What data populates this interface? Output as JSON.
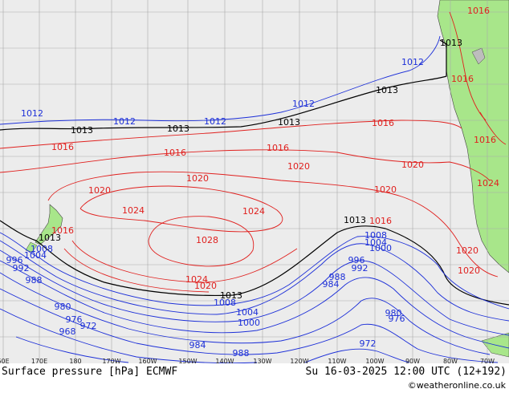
{
  "footer": {
    "left": "Surface pressure [hPa] ECMWF",
    "right": "Su 16-03-2025 12:00 UTC (12+192)",
    "credit": "©weatheronline.co.uk"
  },
  "longitude_ticks": [
    "60E",
    "170E",
    "180",
    "170W",
    "160W",
    "150W",
    "140W",
    "130W",
    "120W",
    "110W",
    "100W",
    "90W",
    "80W",
    "70W"
  ],
  "colors": {
    "ocean": "#ececec",
    "land": "#a8e68a",
    "grid": "#a9a9a9",
    "high_isobar": "#e0201e",
    "low_isobar": "#1c2fd8",
    "standard_isobar": "#000000"
  },
  "isobar_labels": [
    {
      "text": "1016",
      "color": "red",
      "name": "label-1016-chile-top"
    },
    {
      "text": "1013",
      "color": "black",
      "name": "label-1013-top"
    },
    {
      "text": "1012",
      "color": "blue",
      "name": "label-1012-east"
    },
    {
      "text": "1016",
      "color": "red",
      "name": "label-1016-chile"
    },
    {
      "text": "1012",
      "color": "blue",
      "name": "label-1012-west"
    },
    {
      "text": "1012",
      "color": "blue",
      "name": "label-1012-b"
    },
    {
      "text": "1012",
      "color": "blue",
      "name": "label-1012-c"
    },
    {
      "text": "1012",
      "color": "blue",
      "name": "label-1012-d"
    },
    {
      "text": "1013",
      "color": "black",
      "name": "label-1013-a"
    },
    {
      "text": "1013",
      "color": "black",
      "name": "label-1013-b"
    },
    {
      "text": "1013",
      "color": "black",
      "name": "label-1013-c"
    },
    {
      "text": "1013",
      "color": "black",
      "name": "label-1013-d"
    },
    {
      "text": "1016",
      "color": "red",
      "name": "label-1016-a"
    },
    {
      "text": "1016",
      "color": "red",
      "name": "label-1016-b"
    },
    {
      "text": "1016",
      "color": "red",
      "name": "label-1016-c"
    },
    {
      "text": "1016",
      "color": "red",
      "name": "label-1016-d"
    },
    {
      "text": "1016",
      "color": "red",
      "name": "label-1016-e"
    },
    {
      "text": "1024",
      "color": "red",
      "name": "label-1024-andes"
    },
    {
      "text": "1020",
      "color": "red",
      "name": "label-1020-a"
    },
    {
      "text": "1020",
      "color": "red",
      "name": "label-1020-b"
    },
    {
      "text": "1020",
      "color": "red",
      "name": "label-1020-c"
    },
    {
      "text": "1020",
      "color": "red",
      "name": "label-1020-d"
    },
    {
      "text": "1020",
      "color": "red",
      "name": "label-1020-e"
    },
    {
      "text": "1024",
      "color": "red",
      "name": "label-1024-a"
    },
    {
      "text": "1024",
      "color": "red",
      "name": "label-1024-b"
    },
    {
      "text": "1024",
      "color": "red",
      "name": "label-1024-c"
    },
    {
      "text": "1028",
      "color": "red",
      "name": "label-1028"
    },
    {
      "text": "1020",
      "color": "red",
      "name": "label-1020-f"
    },
    {
      "text": "1020",
      "color": "red",
      "name": "label-1020-g"
    },
    {
      "text": "1020",
      "color": "red",
      "name": "label-1020-h"
    },
    {
      "text": "1016",
      "color": "red",
      "name": "label-1016-f"
    },
    {
      "text": "1016",
      "color": "red",
      "name": "label-1016-nz"
    },
    {
      "text": "1013",
      "color": "black",
      "name": "label-1013-e"
    },
    {
      "text": "1013",
      "color": "black",
      "name": "label-1013-nz"
    },
    {
      "text": "1013",
      "color": "black",
      "name": "label-1013-f"
    },
    {
      "text": "1008",
      "color": "blue",
      "name": "label-1008-a"
    },
    {
      "text": "1004",
      "color": "blue",
      "name": "label-1004-a"
    },
    {
      "text": "1000",
      "color": "blue",
      "name": "label-1000-a"
    },
    {
      "text": "1008",
      "color": "blue",
      "name": "label-1008-b"
    },
    {
      "text": "1004",
      "color": "blue",
      "name": "label-1004-b"
    },
    {
      "text": "1008",
      "color": "blue",
      "name": "label-1008-c"
    },
    {
      "text": "1004",
      "color": "blue",
      "name": "label-1004-c"
    },
    {
      "text": "1000",
      "color": "blue",
      "name": "label-1000-b"
    },
    {
      "text": "996",
      "color": "blue",
      "name": "label-996-a"
    },
    {
      "text": "992",
      "color": "blue",
      "name": "label-992-a"
    },
    {
      "text": "988",
      "color": "blue",
      "name": "label-988-a"
    },
    {
      "text": "984",
      "color": "blue",
      "name": "label-984-a"
    },
    {
      "text": "996",
      "color": "blue",
      "name": "label-996-b"
    },
    {
      "text": "992",
      "color": "blue",
      "name": "label-992-b"
    },
    {
      "text": "988",
      "color": "blue",
      "name": "label-988-b"
    },
    {
      "text": "980",
      "color": "blue",
      "name": "label-980-a"
    },
    {
      "text": "976",
      "color": "blue",
      "name": "label-976-a"
    },
    {
      "text": "972",
      "color": "blue",
      "name": "label-972-a"
    },
    {
      "text": "968",
      "color": "blue",
      "name": "label-968"
    },
    {
      "text": "984",
      "color": "blue",
      "name": "label-984-b"
    },
    {
      "text": "988",
      "color": "blue",
      "name": "label-988-c"
    },
    {
      "text": "980",
      "color": "blue",
      "name": "label-980-b"
    },
    {
      "text": "976",
      "color": "blue",
      "name": "label-976-b"
    },
    {
      "text": "972",
      "color": "blue",
      "name": "label-972-b"
    }
  ]
}
